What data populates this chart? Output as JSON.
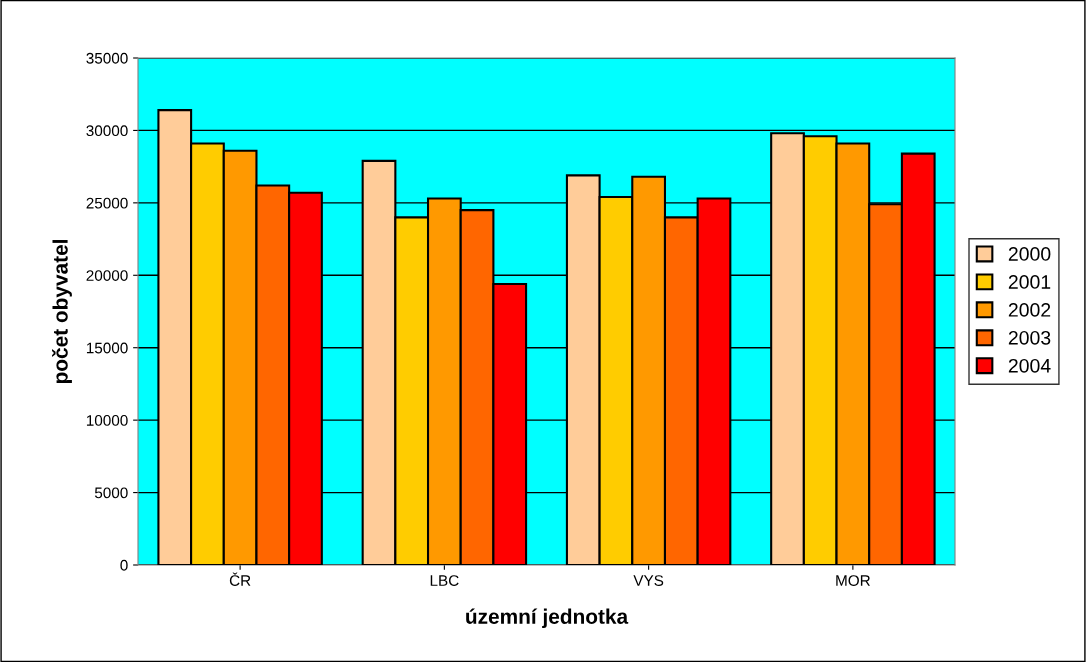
{
  "chart_data": {
    "type": "bar",
    "xlabel": "územní jednotka",
    "ylabel": "počet obyvatel",
    "categories": [
      "ČR",
      "LBC",
      "VYS",
      "MOR"
    ],
    "series": [
      {
        "name": "2000",
        "color": "#ffcc99",
        "values": [
          31400,
          27900,
          26900,
          29800
        ]
      },
      {
        "name": "2001",
        "color": "#ffcc00",
        "values": [
          29100,
          24000,
          25400,
          29600
        ]
      },
      {
        "name": "2002",
        "color": "#ff9900",
        "values": [
          28600,
          25300,
          26800,
          29100
        ]
      },
      {
        "name": "2003",
        "color": "#ff6600",
        "values": [
          26200,
          24500,
          24000,
          24900
        ]
      },
      {
        "name": "2004",
        "color": "#ff0000",
        "values": [
          25700,
          19400,
          25300,
          28400
        ]
      }
    ],
    "ylim": [
      0,
      35000
    ],
    "yticks": [
      0,
      5000,
      10000,
      15000,
      20000,
      25000,
      30000,
      35000
    ],
    "grid": "y",
    "legend": "right"
  }
}
